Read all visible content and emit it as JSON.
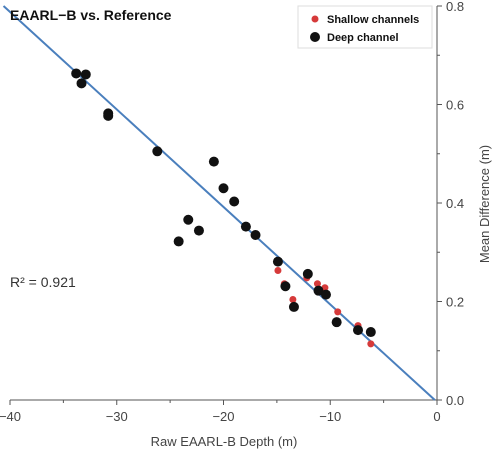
{
  "chart_data": {
    "type": "scatter",
    "title": "EAARL−B vs. Reference",
    "xlabel": "Raw EAARL-B Depth (m)",
    "ylabel": "Mean Difference (m)",
    "xlim": [
      -40,
      0
    ],
    "ylim": [
      0,
      0.8
    ],
    "x_ticks": [
      -40,
      -30,
      -20,
      -10,
      0
    ],
    "x_tick_labels": [
      "−40",
      "−30",
      "−20",
      "−10",
      "0"
    ],
    "y_ticks": [
      0,
      0.2,
      0.4,
      0.6,
      0.8
    ],
    "y_tick_labels": [
      "0.0",
      "0.2",
      "0.4",
      "0.6",
      "0.8"
    ],
    "y_axis_position": "right",
    "grid": false,
    "legend_position": "top-right",
    "annotation": "R² = 0.921",
    "colors": {
      "shallow": "#d63a3a",
      "deep": "#111111",
      "fit": "#4a7fbd"
    },
    "fit_line": {
      "slope": -0.0198,
      "intercept": -0.004
    },
    "series": [
      {
        "name": "Shallow channels",
        "points": [
          [
            -14.9,
            0.263
          ],
          [
            -14.3,
            0.236
          ],
          [
            -13.5,
            0.204
          ],
          [
            -12.2,
            0.248
          ],
          [
            -11.2,
            0.236
          ],
          [
            -10.5,
            0.228
          ],
          [
            -9.3,
            0.179
          ],
          [
            -7.4,
            0.151
          ],
          [
            -6.2,
            0.114
          ]
        ]
      },
      {
        "name": "Deep channel",
        "points": [
          [
            -33.8,
            0.663
          ],
          [
            -33.3,
            0.643
          ],
          [
            -32.9,
            0.661
          ],
          [
            -30.8,
            0.582
          ],
          [
            -30.8,
            0.577
          ],
          [
            -26.2,
            0.505
          ],
          [
            -24.2,
            0.322
          ],
          [
            -23.3,
            0.366
          ],
          [
            -22.3,
            0.344
          ],
          [
            -20.9,
            0.484
          ],
          [
            -20.0,
            0.43
          ],
          [
            -19.0,
            0.403
          ],
          [
            -17.9,
            0.352
          ],
          [
            -17.0,
            0.335
          ],
          [
            -14.9,
            0.281
          ],
          [
            -14.2,
            0.231
          ],
          [
            -13.4,
            0.189
          ],
          [
            -12.1,
            0.256
          ],
          [
            -11.1,
            0.222
          ],
          [
            -10.4,
            0.214
          ],
          [
            -9.4,
            0.158
          ],
          [
            -7.4,
            0.142
          ],
          [
            -6.2,
            0.138
          ]
        ]
      }
    ]
  }
}
